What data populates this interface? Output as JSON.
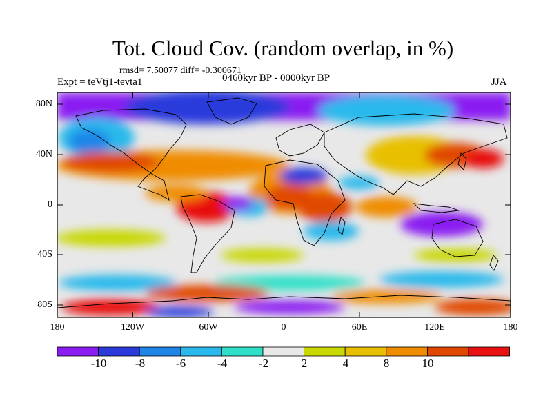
{
  "title": "Tot. Cloud Cov. (random overlap, in %)",
  "stats": "rmsd= 7.50077 diff= -0.300671",
  "experiment": "Expt = teVtj1-tevta1",
  "period": "0460kyr BP - 0000kyr BP",
  "season": "JJA",
  "lat_ticks": [
    "80N",
    "40N",
    "0",
    "40S",
    "80S"
  ],
  "lon_ticks": [
    "180",
    "120W",
    "60W",
    "0",
    "60E",
    "120E",
    "180"
  ],
  "colorbar": {
    "labels": [
      "-10",
      "-8",
      "-6",
      "-4",
      "-2",
      "2",
      "4",
      "8",
      "10"
    ],
    "colors": [
      "#8a1cf2",
      "#2c3adc",
      "#1f86e8",
      "#2ab9ec",
      "#2fe0c8",
      "#e8e8e8",
      "#c8d800",
      "#e8c000",
      "#f08c00",
      "#e04800",
      "#e81010"
    ]
  }
}
